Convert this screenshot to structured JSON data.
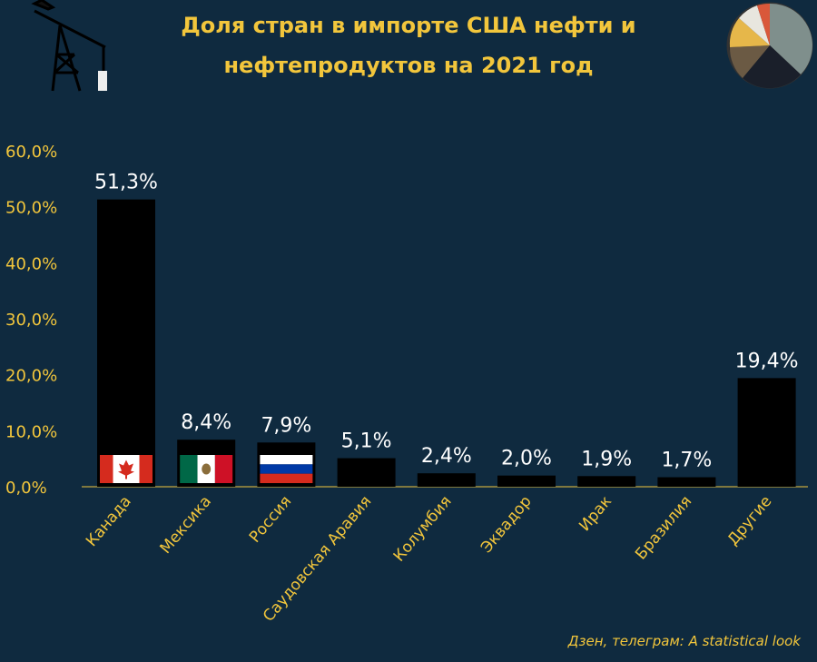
{
  "header": {
    "title_line1": "Доля стран в импорте США нефти и",
    "title_line2": "нефтепродуктов на 2021 год"
  },
  "footer": {
    "credit": "Дзен, телеграм: A statistical look"
  },
  "colors": {
    "background": "#0f2a3f",
    "accent": "#f2c63c",
    "bar": "#000000",
    "value_text": "#ffffff"
  },
  "decor": {
    "left_icon": "oil-pump-icon",
    "right_icon": "pie-chart-icon"
  },
  "chart_data": {
    "type": "bar",
    "title": "Доля стран в импорте США нефти и нефтепродуктов на 2021 год",
    "xlabel": "",
    "ylabel": "",
    "ylim": [
      0,
      60
    ],
    "grid": false,
    "y_ticks": [
      "0,0%",
      "10,0%",
      "20,0%",
      "30,0%",
      "40,0%",
      "50,0%",
      "60,0%"
    ],
    "categories": [
      "Канада",
      "Мексика",
      "Россия",
      "Саудовская Аравия",
      "Колумбия",
      "Эквадор",
      "Ирак",
      "Бразилия",
      "Другие"
    ],
    "values": [
      51.3,
      8.4,
      7.9,
      5.1,
      2.4,
      2.0,
      1.9,
      1.7,
      19.4
    ],
    "value_labels": [
      "51,3%",
      "8,4%",
      "7,9%",
      "5,1%",
      "2,4%",
      "2,0%",
      "1,9%",
      "1,7%",
      "19,4%"
    ],
    "flags": [
      "canada-flag-icon",
      "mexico-flag-icon",
      "russia-flag-icon",
      "",
      "",
      "",
      "",
      "",
      ""
    ]
  }
}
